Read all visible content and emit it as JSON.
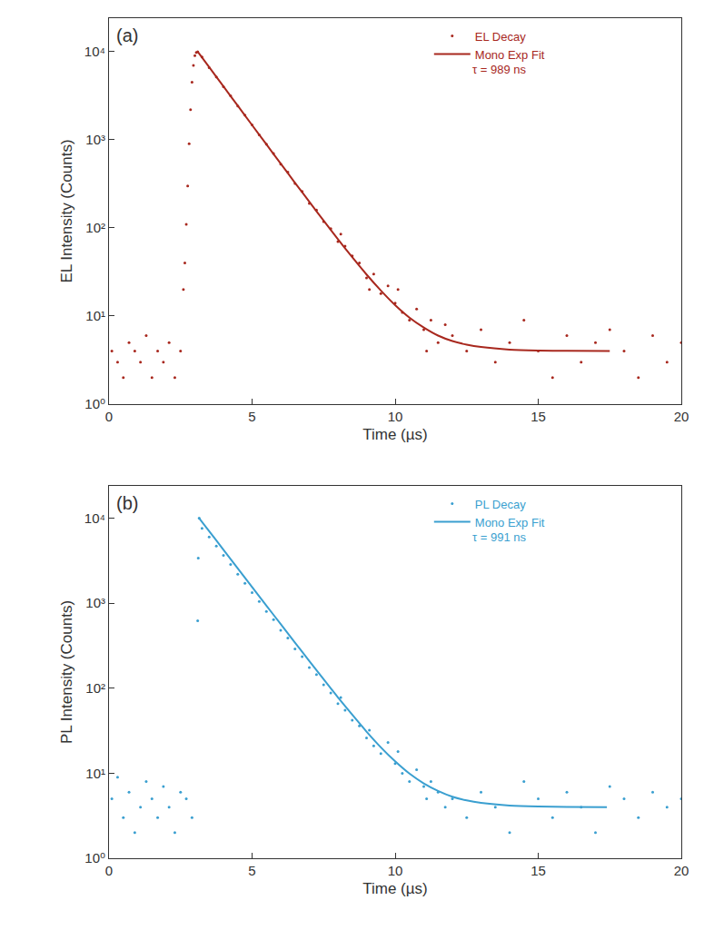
{
  "chart_data": [
    {
      "type": "scatter",
      "title": "(a)",
      "x_label": "Time (µs)",
      "y_label": "EL Intensity (Counts)",
      "xlim": [
        0,
        20
      ],
      "xticks": [
        0,
        5,
        10,
        15,
        20
      ],
      "ylim": [
        1,
        24000
      ],
      "yticks": [
        {
          "value": 1,
          "label": "10⁰"
        },
        {
          "value": 10,
          "label": "10¹"
        },
        {
          "value": 100,
          "label": "10²"
        },
        {
          "value": 1000,
          "label": "10³"
        },
        {
          "value": 10000,
          "label": "10⁴"
        }
      ],
      "log": "y",
      "grid": false,
      "legend": "top right",
      "annotations": [
        "τ = 989 ns"
      ],
      "series": [
        {
          "name": "EL Decay",
          "type": "scatter",
          "marker": "dot",
          "color": "#a8281e",
          "x": [
            0.1,
            0.3,
            0.5,
            0.7,
            0.9,
            1.1,
            1.3,
            1.5,
            1.7,
            1.9,
            2.1,
            2.3,
            2.5,
            2.6,
            2.65,
            2.7,
            2.75,
            2.8,
            2.85,
            2.9,
            2.95,
            3.0,
            3.05,
            3.1,
            3.25,
            3.5,
            3.75,
            4.0,
            4.25,
            4.5,
            4.75,
            5.0,
            5.25,
            5.5,
            5.75,
            6.0,
            6.25,
            6.5,
            6.75,
            7.0,
            7.25,
            7.5,
            7.75,
            8.0,
            8.1,
            8.25,
            8.5,
            8.75,
            9.0,
            9.1,
            9.25,
            9.5,
            9.75,
            10.0,
            10.1,
            10.25,
            10.5,
            10.75,
            11.0,
            11.1,
            11.25,
            11.5,
            11.75,
            12.0,
            12.5,
            13.0,
            13.5,
            14.0,
            14.5,
            15.0,
            15.5,
            16.0,
            16.5,
            17.0,
            17.5,
            18.0,
            18.5,
            19.0,
            19.5,
            20.0
          ],
          "values": [
            4,
            3,
            2,
            5,
            4,
            3,
            6,
            2,
            4,
            3,
            5,
            2,
            4,
            20,
            40,
            110,
            300,
            900,
            2200,
            4500,
            7000,
            9000,
            9800,
            10000,
            8700,
            6600,
            5150,
            4000,
            3150,
            2420,
            1900,
            1480,
            1140,
            890,
            700,
            530,
            430,
            320,
            260,
            190,
            160,
            118,
            98,
            70,
            85,
            62,
            48,
            40,
            27,
            20,
            30,
            18,
            22,
            14,
            20,
            11,
            9,
            12,
            7,
            4,
            9,
            5,
            8,
            6,
            4,
            7,
            3,
            5,
            9,
            4,
            2,
            6,
            3,
            5,
            7,
            4,
            2,
            6,
            3,
            5
          ]
        },
        {
          "name": "Mono Exp Fit",
          "type": "line",
          "line_style": "solid",
          "color": "#a8281e",
          "x": [
            3.1,
            3.5,
            4.0,
            4.5,
            5.0,
            5.5,
            6.0,
            6.5,
            7.0,
            7.5,
            8.0,
            8.5,
            9.0,
            9.5,
            10.0,
            10.5,
            11.0,
            11.5,
            12.0,
            12.5,
            13.0,
            14.0,
            15.0,
            16.0,
            17.5
          ],
          "values": [
            10004,
            6674,
            4029,
            2432,
            1468,
            887,
            537,
            325,
            198,
            121,
            74.5,
            46.5,
            29.6,
            19.5,
            13.3,
            9.6,
            7.4,
            6.0,
            5.2,
            4.74,
            4.45,
            4.16,
            4.06,
            4.02,
            4.0
          ]
        }
      ]
    },
    {
      "type": "scatter",
      "title": "(b)",
      "x_label": "Time (µs)",
      "y_label": "PL Intensity (Counts)",
      "xlim": [
        0,
        20
      ],
      "xticks": [
        0,
        5,
        10,
        15,
        20
      ],
      "ylim": [
        1,
        24000
      ],
      "yticks": [
        {
          "value": 1,
          "label": "10⁰"
        },
        {
          "value": 10,
          "label": "10¹"
        },
        {
          "value": 100,
          "label": "10²"
        },
        {
          "value": 1000,
          "label": "10³"
        },
        {
          "value": 10000,
          "label": "10⁴"
        }
      ],
      "log": "y",
      "grid": false,
      "legend": "top right",
      "annotations": [
        "τ = 991 ns"
      ],
      "series": [
        {
          "name": "PL Decay",
          "type": "scatter",
          "marker": "dot",
          "color": "#3a9fd0",
          "x": [
            0.1,
            0.3,
            0.5,
            0.7,
            0.9,
            1.1,
            1.3,
            1.5,
            1.7,
            1.9,
            2.1,
            2.3,
            2.5,
            2.7,
            2.9,
            3.1,
            3.12,
            3.15,
            3.25,
            3.5,
            3.75,
            4.0,
            4.25,
            4.5,
            4.75,
            5.0,
            5.25,
            5.5,
            5.75,
            6.0,
            6.25,
            6.5,
            6.75,
            7.0,
            7.25,
            7.5,
            7.75,
            8.0,
            8.1,
            8.25,
            8.5,
            8.75,
            9.0,
            9.1,
            9.25,
            9.5,
            9.75,
            10.0,
            10.1,
            10.25,
            10.5,
            10.75,
            11.0,
            11.1,
            11.25,
            11.5,
            11.75,
            12.0,
            12.5,
            13.0,
            13.5,
            14.0,
            14.5,
            15.0,
            15.5,
            16.0,
            16.5,
            17.0,
            17.5,
            18.0,
            18.5,
            19.0,
            19.5,
            20.0
          ],
          "values": [
            5,
            9,
            3,
            6,
            2,
            4,
            8,
            5,
            3,
            7,
            4,
            2,
            6,
            5,
            3,
            620,
            3400,
            10000,
            7600,
            6000,
            4700,
            3650,
            2850,
            2200,
            1720,
            1330,
            1050,
            800,
            640,
            480,
            390,
            290,
            235,
            175,
            145,
            110,
            88,
            66,
            78,
            55,
            42,
            36,
            26,
            32,
            21,
            17,
            23,
            13,
            18,
            10,
            8,
            11,
            7,
            5,
            8,
            6,
            4,
            5,
            3,
            6,
            4,
            2,
            8,
            5,
            3,
            6,
            4,
            2,
            7,
            5,
            3,
            6,
            4,
            5
          ]
        },
        {
          "name": "Mono Exp Fit",
          "type": "line",
          "line_style": "solid",
          "color": "#3a9fd0",
          "x": [
            3.15,
            3.5,
            4.0,
            4.5,
            5.0,
            5.5,
            6.0,
            6.5,
            7.0,
            7.5,
            8.0,
            8.5,
            9.0,
            9.5,
            10.0,
            10.5,
            11.0,
            11.5,
            12.0,
            12.5,
            13.0,
            14.0,
            15.0,
            16.0,
            17.4
          ],
          "values": [
            10004,
            7044,
            4254,
            2570,
            1552,
            938,
            568,
            344,
            209,
            128,
            78.2,
            48.8,
            30.9,
            20.2,
            13.8,
            9.9,
            7.6,
            6.2,
            5.3,
            4.79,
            4.48,
            4.17,
            4.06,
            4.02,
            4.0
          ]
        }
      ]
    }
  ]
}
